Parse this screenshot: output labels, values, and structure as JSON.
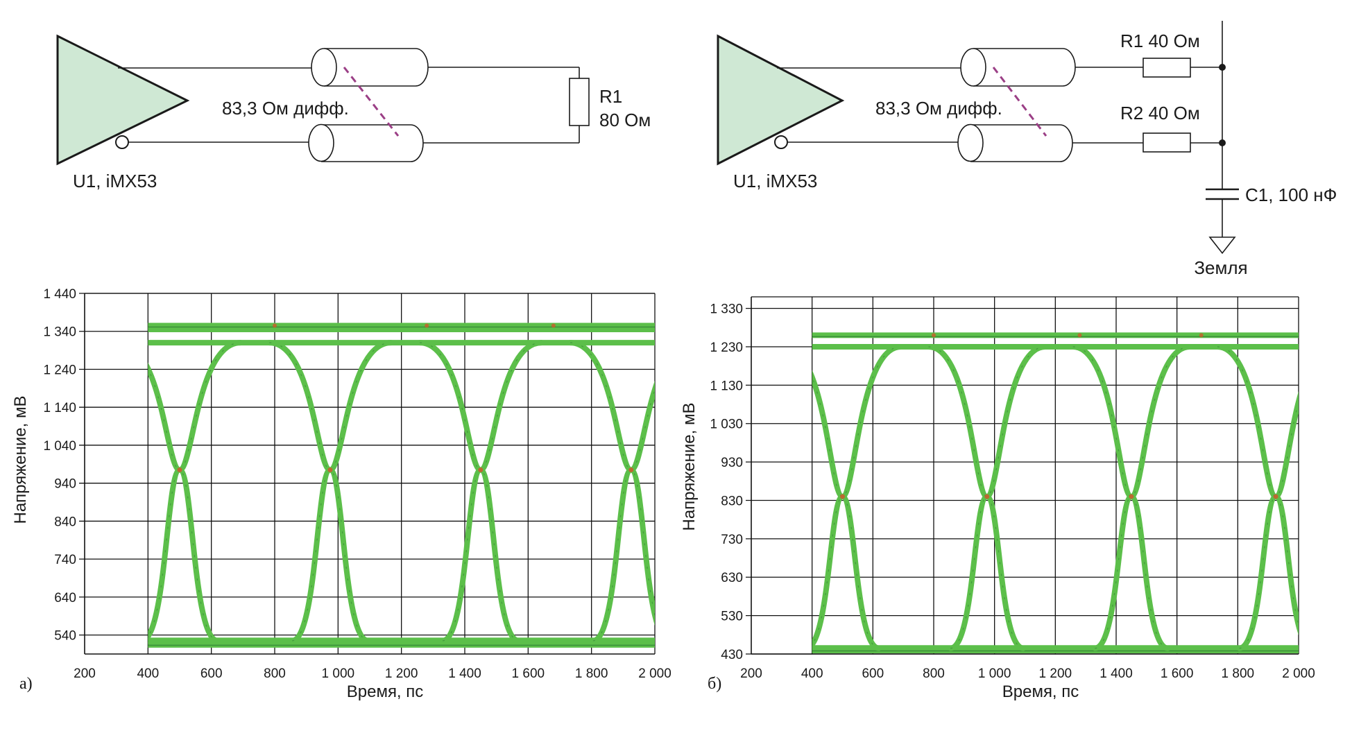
{
  "schematic_a": {
    "driver_label": "U1, iMX53",
    "line_label": "83,3 Ом дифф.",
    "r_name": "R1",
    "r_value": "80 Ом"
  },
  "schematic_b": {
    "driver_label": "U1, iMX53",
    "line_label": "83,3 Ом дифф.",
    "r1_label": "R1 40 Ом",
    "r2_label": "R2 40 Ом",
    "c_label": "C1, 100 нФ",
    "ground_label": "Земля"
  },
  "colors": {
    "driver_fill": "#cfe8d4",
    "trace": "#5cbf4a",
    "trace_dark": "#2e7d32",
    "hot": "#d4552a",
    "dash": "#9b3f86",
    "grid": "#111111"
  },
  "chart_data": [
    {
      "type": "line",
      "panel_label": "а)",
      "xlabel": "Время, пс",
      "ylabel": "Напряжение, мВ",
      "xlim": [
        200,
        2000
      ],
      "ylim": [
        490,
        1440
      ],
      "x_ticks": [
        200,
        400,
        600,
        800,
        1000,
        1200,
        1400,
        1600,
        1800,
        2000
      ],
      "x_tick_labels": [
        "200",
        "400",
        "600",
        "800",
        "1 000",
        "1 200",
        "1 400",
        "1 600",
        "1 800",
        "2 000"
      ],
      "y_ticks": [
        540,
        640,
        740,
        840,
        940,
        1040,
        1140,
        1240,
        1340,
        1440
      ],
      "y_tick_labels": [
        "540",
        "640",
        "740",
        "840",
        "940",
        "1 040",
        "1 140",
        "1 240",
        "1 340",
        "1 440"
      ],
      "grid": true,
      "data_x_range": [
        400,
        2000
      ],
      "high_levels": [
        1310,
        1345,
        1355
      ],
      "low_levels": [
        515,
        525
      ],
      "crossing_times": [
        500,
        975,
        1450,
        1925
      ],
      "crossing_level": 975,
      "bit_period": 475,
      "rise_time": 240
    },
    {
      "type": "line",
      "panel_label": "б)",
      "xlabel": "Время, пс",
      "ylabel": "Напряжение, мВ",
      "xlim": [
        200,
        2000
      ],
      "ylim": [
        430,
        1360
      ],
      "x_ticks": [
        200,
        400,
        600,
        800,
        1000,
        1200,
        1400,
        1600,
        1800,
        2000
      ],
      "x_tick_labels": [
        "200",
        "400",
        "600",
        "800",
        "1 000",
        "1 200",
        "1 400",
        "1 600",
        "1 800",
        "2 000"
      ],
      "y_ticks": [
        430,
        530,
        630,
        730,
        830,
        930,
        1030,
        1130,
        1230,
        1330
      ],
      "y_tick_labels": [
        "430",
        "530",
        "630",
        "730",
        "830",
        "930",
        "1 030",
        "1 130",
        "1 230",
        "1 330"
      ],
      "grid": true,
      "data_x_range": [
        400,
        2000
      ],
      "high_levels": [
        1230,
        1260
      ],
      "low_levels": [
        440,
        445
      ],
      "crossing_times": [
        500,
        975,
        1450,
        1925
      ],
      "crossing_level": 840,
      "bit_period": 475,
      "rise_time": 240
    }
  ]
}
